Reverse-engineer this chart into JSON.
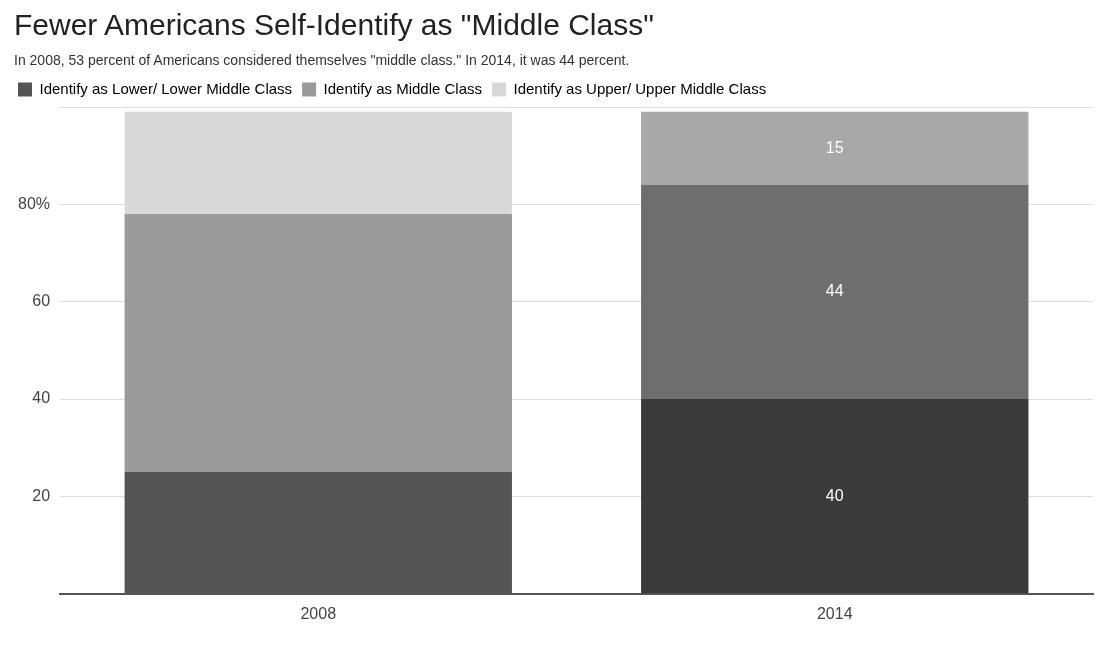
{
  "chart_data": {
    "type": "bar",
    "title": "Fewer Americans Self-Identify as \"Middle Class\"",
    "subtitle": "In 2008, 53 percent of Americans considered themselves \"middle class.\" In 2014, it was 44 percent.",
    "categories": [
      "2008",
      "2014"
    ],
    "stacked": true,
    "series": [
      {
        "name": "Identify as Lower/ Lower Middle Class",
        "color": "#555555",
        "colors": [
          "#555555",
          "#3a3a3a"
        ],
        "values": [
          25,
          40
        ],
        "value_labels": [
          null,
          "40"
        ]
      },
      {
        "name": "Identify as Middle Class",
        "color": "#9a9a9a",
        "colors": [
          "#9a9a9a",
          "#6e6e6e"
        ],
        "values": [
          53,
          44
        ],
        "value_labels": [
          null,
          "44"
        ]
      },
      {
        "name": "Identify as Upper/ Upper Middle Class",
        "color": "#d8d8d8",
        "colors": [
          "#d8d8d8",
          "#a8a8a8"
        ],
        "values": [
          21,
          15
        ],
        "value_labels": [
          null,
          "15"
        ]
      }
    ],
    "ylim": [
      0,
      100
    ],
    "yticks": [
      {
        "value": 0,
        "label": null
      },
      20,
      40,
      60,
      {
        "value": 80,
        "label": "80%"
      },
      {
        "value": 100,
        "label": null
      }
    ],
    "grid": "y",
    "legend": "top left"
  }
}
